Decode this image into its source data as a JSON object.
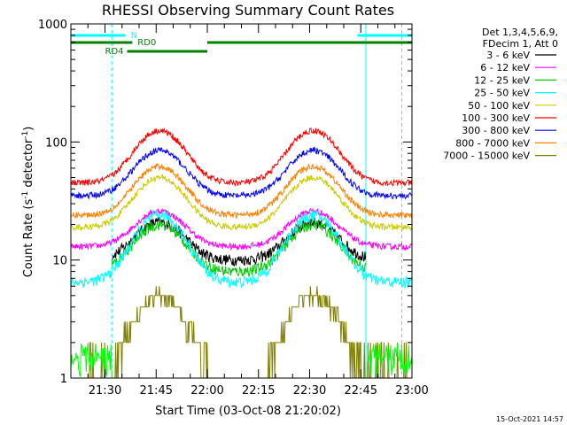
{
  "chart_data": {
    "type": "line",
    "title": "RHESSI Observing Summary Count Rates",
    "xlabel": "Start Time (03-Oct-08 21:20:02)",
    "ylabel_main": "Count Rate (s",
    "ylabel_sup1": "-1",
    "ylabel_mid": " detector",
    "ylabel_sup2": "-1",
    "ylabel_end": ")",
    "y_scale": "log",
    "ylim": [
      1,
      1000
    ],
    "xlim_minutes": [
      0,
      100
    ],
    "x_ticks": [
      {
        "minute": 10,
        "label": "21:30"
      },
      {
        "minute": 25,
        "label": "21:45"
      },
      {
        "minute": 40,
        "label": "22:00"
      },
      {
        "minute": 55,
        "label": "22:15"
      },
      {
        "minute": 70,
        "label": "22:30"
      },
      {
        "minute": 85,
        "label": "22:45"
      },
      {
        "minute": 100,
        "label": "23:00"
      }
    ],
    "y_ticks": [
      {
        "value": 1,
        "label": "1"
      },
      {
        "value": 10,
        "label": "10"
      },
      {
        "value": 100,
        "label": "100"
      },
      {
        "value": 1000,
        "label": "1000"
      }
    ],
    "legend_header": [
      "Det 1,3,4,5,6,9,",
      "FDecim 1, Att 0"
    ],
    "legend_placement": "right",
    "series": [
      {
        "name": "3 - 6 keV",
        "color": "#000000",
        "base": 10,
        "peak": 21
      },
      {
        "name": "6 - 12 keV",
        "color": "#ff00ff",
        "base": 13,
        "peak": 26
      },
      {
        "name": "12 - 25 keV",
        "color": "#00cc00",
        "base": 8,
        "peak": 20
      },
      {
        "name": "25 - 50 keV",
        "color": "#00ffff",
        "base": 6.5,
        "peak": 24
      },
      {
        "name": "50 - 100 keV",
        "color": "#cccc00",
        "base": 19,
        "peak": 50
      },
      {
        "name": "100 - 300 keV",
        "color": "#ff0000",
        "base": 45,
        "peak": 125
      },
      {
        "name": "300 - 800 keV",
        "color": "#0000ff",
        "base": 35,
        "peak": 85
      },
      {
        "name": "800 - 7000 keV",
        "color": "#ff8000",
        "base": 24,
        "peak": 62
      },
      {
        "name": "7000 - 15000 keV",
        "color": "#808000",
        "base": 1,
        "peak": 5
      }
    ],
    "flags": [
      {
        "label": "N",
        "color": "#00ffff"
      },
      {
        "label": "RD0",
        "color": "#008000"
      },
      {
        "label": "RD4",
        "color": "#008000"
      }
    ],
    "timestamp": "15-Oct-2021 14:57"
  }
}
